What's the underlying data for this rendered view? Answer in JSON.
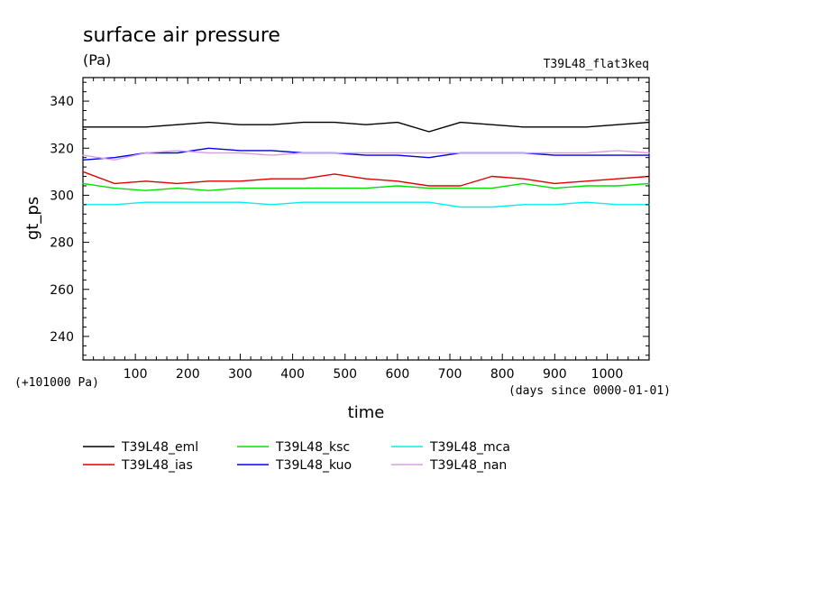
{
  "chart_data": {
    "type": "line",
    "title": "surface air pressure",
    "subtitle": "(Pa)",
    "experiment": "T39L48_flat3keq",
    "xlabel": "time",
    "x_units": "(days since 0000-01-01)",
    "ylabel": "gt_ps",
    "y_offset_label": "(+101000 Pa)",
    "xlim": [
      0,
      1080
    ],
    "ylim": [
      230,
      350
    ],
    "x_ticks": [
      100,
      200,
      300,
      400,
      500,
      600,
      700,
      800,
      900,
      1000
    ],
    "x_tick_labels": [
      "100",
      "200",
      "300",
      "400",
      "500",
      "600",
      "700",
      "800",
      "900",
      "1000"
    ],
    "y_ticks": [
      240,
      260,
      280,
      300,
      320,
      340
    ],
    "y_tick_labels": [
      "240",
      "260",
      "280",
      "300",
      "320",
      "340"
    ],
    "grid": false,
    "legend_position": "bottom",
    "series": [
      {
        "name": "T39L48_eml",
        "color": "#000000",
        "x": [
          0,
          60,
          120,
          180,
          240,
          300,
          360,
          420,
          480,
          540,
          600,
          660,
          720,
          780,
          840,
          900,
          960,
          1020,
          1080
        ],
        "values": [
          329,
          329,
          329,
          330,
          331,
          330,
          330,
          331,
          331,
          330,
          331,
          327,
          331,
          330,
          329,
          329,
          329,
          330,
          331
        ]
      },
      {
        "name": "T39L48_ias",
        "color": "#e00000",
        "x": [
          0,
          60,
          120,
          180,
          240,
          300,
          360,
          420,
          480,
          540,
          600,
          660,
          720,
          780,
          840,
          900,
          960,
          1020,
          1080
        ],
        "values": [
          310,
          305,
          306,
          305,
          306,
          306,
          307,
          307,
          309,
          307,
          306,
          304,
          304,
          308,
          307,
          305,
          306,
          307,
          308
        ]
      },
      {
        "name": "T39L48_ksc",
        "color": "#00e000",
        "x": [
          0,
          60,
          120,
          180,
          240,
          300,
          360,
          420,
          480,
          540,
          600,
          660,
          720,
          780,
          840,
          900,
          960,
          1020,
          1080
        ],
        "values": [
          305,
          303,
          302,
          303,
          302,
          303,
          303,
          303,
          303,
          303,
          304,
          303,
          303,
          303,
          305,
          303,
          304,
          304,
          305
        ]
      },
      {
        "name": "T39L48_kuo",
        "color": "#0000e0",
        "x": [
          0,
          60,
          120,
          180,
          240,
          300,
          360,
          420,
          480,
          540,
          600,
          660,
          720,
          780,
          840,
          900,
          960,
          1020,
          1080
        ],
        "values": [
          315,
          316,
          318,
          318,
          320,
          319,
          319,
          318,
          318,
          317,
          317,
          316,
          318,
          318,
          318,
          317,
          317,
          317,
          317
        ]
      },
      {
        "name": "T39L48_mca",
        "color": "#00f0f0",
        "x": [
          0,
          60,
          120,
          180,
          240,
          300,
          360,
          420,
          480,
          540,
          600,
          660,
          720,
          780,
          840,
          900,
          960,
          1020,
          1080
        ],
        "values": [
          296,
          296,
          297,
          297,
          297,
          297,
          296,
          297,
          297,
          297,
          297,
          297,
          295,
          295,
          296,
          296,
          297,
          296,
          296
        ]
      },
      {
        "name": "T39L48_nan",
        "color": "#d8a0e0",
        "x": [
          0,
          60,
          120,
          180,
          240,
          300,
          360,
          420,
          480,
          540,
          600,
          660,
          720,
          780,
          840,
          900,
          960,
          1020,
          1080
        ],
        "values": [
          317,
          315,
          318,
          319,
          318,
          318,
          317,
          318,
          318,
          318,
          318,
          318,
          318,
          318,
          318,
          318,
          318,
          319,
          318
        ]
      }
    ]
  }
}
